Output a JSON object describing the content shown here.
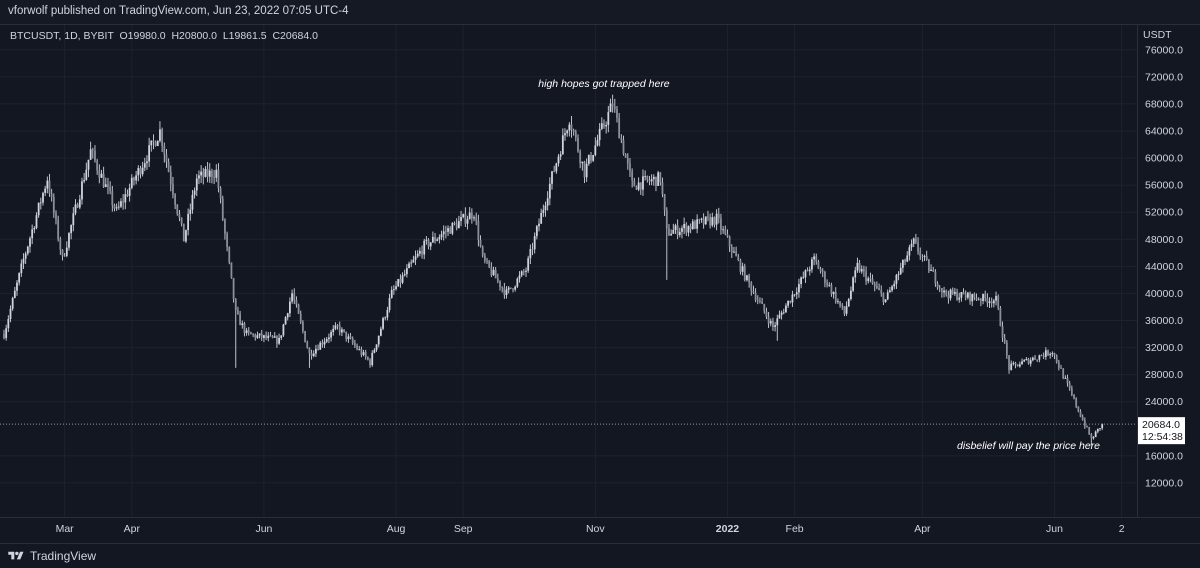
{
  "header": {
    "publisher_line": "vforwolf published on TradingView.com, Jun 23, 2022 07:05 UTC-4"
  },
  "footer": {
    "brand": "TradingView",
    "brand_icon": "tradingview-logo-icon"
  },
  "colors": {
    "background": "#131722",
    "candle": "#d1d4dc",
    "grid": "#1e222d",
    "axis_text": "#d1d4dc"
  },
  "chart_data": {
    "type": "candlestick",
    "symbol_line": "BTCUSDT, 1D, BYBIT  O19980.0  H20800.0  L19861.5  C20684.0",
    "currency": "USDT",
    "ylim": [
      8000,
      77000
    ],
    "y_ticks": [
      76000,
      72000,
      68000,
      64000,
      60000,
      56000,
      52000,
      48000,
      44000,
      40000,
      36000,
      32000,
      28000,
      24000,
      16000,
      12000
    ],
    "y_tick_labels": [
      "76000.0",
      "72000.0",
      "68000.0",
      "64000.0",
      "60000.0",
      "56000.0",
      "52000.0",
      "48000.0",
      "44000.0",
      "40000.0",
      "36000.0",
      "32000.0",
      "28000.0",
      "24000.0",
      "16000.0",
      "12000.0"
    ],
    "x_start": "2021-02-01",
    "x_end": "2022-07-04",
    "x_ticks": [
      {
        "label": "Mar",
        "date": "2021-03-01",
        "bold": false
      },
      {
        "label": "Apr",
        "date": "2021-04-01",
        "bold": false
      },
      {
        "label": "Jun",
        "date": "2021-06-01",
        "bold": false
      },
      {
        "label": "Aug",
        "date": "2021-08-01",
        "bold": false
      },
      {
        "label": "Sep",
        "date": "2021-09-01",
        "bold": false
      },
      {
        "label": "Nov",
        "date": "2021-11-01",
        "bold": false
      },
      {
        "label": "2022",
        "date": "2022-01-01",
        "bold": true
      },
      {
        "label": "Feb",
        "date": "2022-02-01",
        "bold": false
      },
      {
        "label": "Apr",
        "date": "2022-04-01",
        "bold": false
      },
      {
        "label": "Jun",
        "date": "2022-06-01",
        "bold": false
      },
      {
        "label": "2",
        "date": "2022-07-02",
        "bold": false
      }
    ],
    "last_price": {
      "value": 20684.0,
      "label": "20684.0",
      "countdown": "12:54:38"
    },
    "annotations": [
      {
        "text": "high hopes got trapped here",
        "date": "2021-11-05",
        "price": 70500
      },
      {
        "text": "disbelief will pay the price here",
        "date": "2022-05-20",
        "price": 17000
      }
    ],
    "price_path": [
      [
        "2021-02-01",
        34000
      ],
      [
        "2021-02-10",
        45000
      ],
      [
        "2021-02-21",
        57000
      ],
      [
        "2021-02-28",
        45000
      ],
      [
        "2021-03-13",
        61000
      ],
      [
        "2021-03-25",
        52000
      ],
      [
        "2021-04-14",
        64000
      ],
      [
        "2021-04-25",
        48000
      ],
      [
        "2021-05-01",
        57000
      ],
      [
        "2021-05-10",
        58000
      ],
      [
        "2021-05-19",
        37000
      ],
      [
        "2021-05-24",
        34000
      ],
      [
        "2021-06-08",
        33000
      ],
      [
        "2021-06-14",
        40000
      ],
      [
        "2021-06-22",
        31000
      ],
      [
        "2021-07-05",
        35000
      ],
      [
        "2021-07-20",
        29800
      ],
      [
        "2021-07-30",
        40000
      ],
      [
        "2021-08-14",
        47000
      ],
      [
        "2021-09-06",
        52000
      ],
      [
        "2021-09-10",
        45000
      ],
      [
        "2021-09-21",
        40000
      ],
      [
        "2021-09-30",
        43500
      ],
      [
        "2021-10-10",
        55000
      ],
      [
        "2021-10-20",
        66000
      ],
      [
        "2021-10-27",
        58000
      ],
      [
        "2021-11-09",
        68000
      ],
      [
        "2021-11-18",
        56000
      ],
      [
        "2021-12-01",
        57000
      ],
      [
        "2021-12-04",
        49000
      ],
      [
        "2021-12-27",
        51000
      ],
      [
        "2022-01-10",
        42000
      ],
      [
        "2022-01-22",
        35000
      ],
      [
        "2022-02-10",
        45000
      ],
      [
        "2022-02-24",
        37000
      ],
      [
        "2022-03-02",
        44000
      ],
      [
        "2022-03-15",
        39000
      ],
      [
        "2022-03-28",
        47500
      ],
      [
        "2022-04-11",
        40000
      ],
      [
        "2022-05-05",
        39000
      ],
      [
        "2022-05-11",
        29000
      ],
      [
        "2022-05-31",
        31500
      ],
      [
        "2022-06-13",
        22000
      ],
      [
        "2022-06-18",
        18500
      ],
      [
        "2022-06-23",
        20684
      ]
    ],
    "wick_spikes": [
      {
        "date": "2021-05-19",
        "low": 29000
      },
      {
        "date": "2021-06-22",
        "low": 29000
      },
      {
        "date": "2021-12-04",
        "low": 42000
      },
      {
        "date": "2022-01-24",
        "low": 33000
      },
      {
        "date": "2022-06-18",
        "low": 17600
      }
    ]
  }
}
